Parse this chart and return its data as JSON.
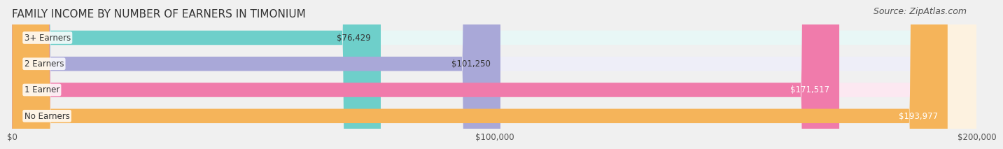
{
  "title": "FAMILY INCOME BY NUMBER OF EARNERS IN TIMONIUM",
  "source": "Source: ZipAtlas.com",
  "categories": [
    "No Earners",
    "1 Earner",
    "2 Earners",
    "3+ Earners"
  ],
  "values": [
    76429,
    101250,
    171517,
    193977
  ],
  "bar_colors": [
    "#6ecfca",
    "#a9a8d8",
    "#f07bab",
    "#f5b45a"
  ],
  "bar_bg_colors": [
    "#e8f7f6",
    "#eeeef8",
    "#fce8f1",
    "#fdf2e0"
  ],
  "value_labels": [
    "$76,429",
    "$101,250",
    "$171,517",
    "$193,977"
  ],
  "label_colors": [
    "#333333",
    "#333333",
    "#ffffff",
    "#ffffff"
  ],
  "xlim": [
    0,
    200000
  ],
  "xtick_values": [
    0,
    100000,
    200000
  ],
  "xtick_labels": [
    "$0",
    "$100,000",
    "$200,000"
  ],
  "background_color": "#f0f0f0",
  "bar_bg_color": "#f5f5f5",
  "title_fontsize": 11,
  "source_fontsize": 9
}
